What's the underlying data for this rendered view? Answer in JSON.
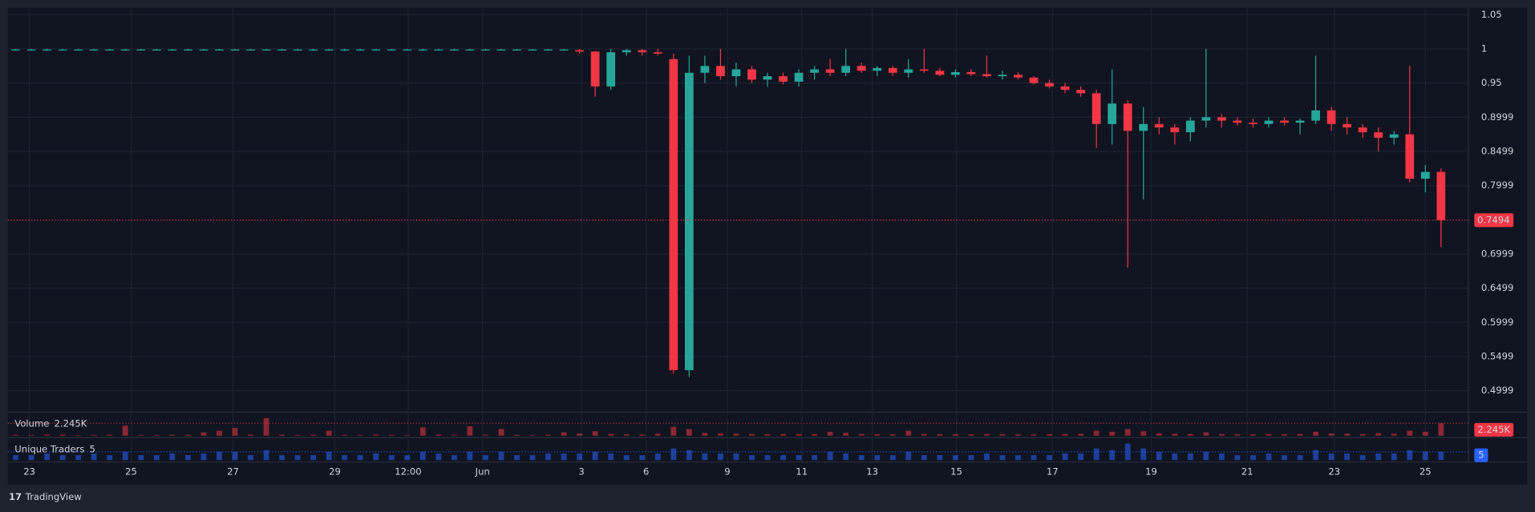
{
  "chart_data": {
    "type": "candlestick",
    "up_color": "#26a69a",
    "down_color": "#f23645",
    "ylim": [
      0.47,
      1.06
    ],
    "yticks": [
      1.05,
      1,
      0.95,
      0.8999,
      0.8499,
      0.7999,
      0.6999,
      0.6499,
      0.5999,
      0.5499,
      0.4999
    ],
    "xlim": [
      0,
      93.25
    ],
    "xticks": [
      {
        "value": 1.375,
        "label": "23"
      },
      {
        "value": 7.875,
        "label": "25"
      },
      {
        "value": 14.375,
        "label": "27"
      },
      {
        "value": 20.875,
        "label": "29"
      },
      {
        "value": 25.56,
        "label": "12:00"
      },
      {
        "value": 30.31,
        "label": "Jun"
      },
      {
        "value": 36.625,
        "label": "3"
      },
      {
        "value": 40.75,
        "label": "6"
      },
      {
        "value": 45.94,
        "label": "9"
      },
      {
        "value": 50.69,
        "label": "11"
      },
      {
        "value": 55.19,
        "label": "13"
      },
      {
        "value": 60.56,
        "label": "15"
      },
      {
        "value": 66.69,
        "label": "17"
      },
      {
        "value": 73,
        "label": "19"
      },
      {
        "value": 79.125,
        "label": "21"
      },
      {
        "value": 84.69,
        "label": "23"
      },
      {
        "value": 90.5,
        "label": "25"
      }
    ],
    "grid": true,
    "last_price": 0.7494,
    "ohlc": [
      [
        0.999,
        1.0,
        0.998,
        0.999
      ],
      [
        0.999,
        1.0,
        0.998,
        0.999
      ],
      [
        0.999,
        1.0,
        0.998,
        0.999
      ],
      [
        0.999,
        1.0,
        0.998,
        0.999
      ],
      [
        0.999,
        1.0,
        0.998,
        0.999
      ],
      [
        0.999,
        1.0,
        0.998,
        0.999
      ],
      [
        0.999,
        1.0,
        0.998,
        0.999
      ],
      [
        0.999,
        1.0,
        0.998,
        0.999
      ],
      [
        0.999,
        1.0,
        0.998,
        0.999
      ],
      [
        0.999,
        1.0,
        0.998,
        0.999
      ],
      [
        0.999,
        1.0,
        0.998,
        0.999
      ],
      [
        0.999,
        1.0,
        0.998,
        0.999
      ],
      [
        0.999,
        1.0,
        0.998,
        0.999
      ],
      [
        0.999,
        1.0,
        0.998,
        0.999
      ],
      [
        0.999,
        1.0,
        0.998,
        0.999
      ],
      [
        0.999,
        1.0,
        0.998,
        0.999
      ],
      [
        0.999,
        1.0,
        0.998,
        0.999
      ],
      [
        0.999,
        1.0,
        0.998,
        0.999
      ],
      [
        0.999,
        1.0,
        0.998,
        0.999
      ],
      [
        0.999,
        1.0,
        0.998,
        0.999
      ],
      [
        0.999,
        1.0,
        0.998,
        0.999
      ],
      [
        0.999,
        1.0,
        0.997,
        0.999
      ],
      [
        0.999,
        1.0,
        0.998,
        0.999
      ],
      [
        0.999,
        1.0,
        0.998,
        0.999
      ],
      [
        0.999,
        1.0,
        0.998,
        0.999
      ],
      [
        0.999,
        1.0,
        0.998,
        0.999
      ],
      [
        0.999,
        1.0,
        0.998,
        0.999
      ],
      [
        0.999,
        1.0,
        0.998,
        0.999
      ],
      [
        0.999,
        1.0,
        0.998,
        0.999
      ],
      [
        0.999,
        1.0,
        0.998,
        0.999
      ],
      [
        0.999,
        1.0,
        0.998,
        0.999
      ],
      [
        0.999,
        1.0,
        0.998,
        0.999
      ],
      [
        0.999,
        1.0,
        0.998,
        0.999
      ],
      [
        0.999,
        1.0,
        0.998,
        0.999
      ],
      [
        0.999,
        1.0,
        0.998,
        0.999
      ],
      [
        0.999,
        1.0,
        0.998,
        0.999
      ],
      [
        0.998,
        1.0,
        0.993,
        0.996
      ],
      [
        0.996,
        0.997,
        0.93,
        0.945
      ],
      [
        0.945,
        1.0,
        0.94,
        0.995
      ],
      [
        0.995,
        1.0,
        0.99,
        0.998
      ],
      [
        0.998,
        1.0,
        0.99,
        0.995
      ],
      [
        0.995,
        1.0,
        0.99,
        0.993
      ],
      [
        0.985,
        0.993,
        0.525,
        0.53
      ],
      [
        0.53,
        0.99,
        0.52,
        0.965
      ],
      [
        0.965,
        0.99,
        0.95,
        0.975
      ],
      [
        0.975,
        1.0,
        0.955,
        0.96
      ],
      [
        0.96,
        0.98,
        0.945,
        0.97
      ],
      [
        0.97,
        0.975,
        0.95,
        0.955
      ],
      [
        0.955,
        0.965,
        0.945,
        0.96
      ],
      [
        0.96,
        0.965,
        0.948,
        0.952
      ],
      [
        0.952,
        0.97,
        0.945,
        0.965
      ],
      [
        0.965,
        0.975,
        0.955,
        0.97
      ],
      [
        0.97,
        0.985,
        0.96,
        0.965
      ],
      [
        0.965,
        1.0,
        0.96,
        0.975
      ],
      [
        0.975,
        0.98,
        0.965,
        0.968
      ],
      [
        0.968,
        0.975,
        0.96,
        0.972
      ],
      [
        0.972,
        0.975,
        0.96,
        0.965
      ],
      [
        0.965,
        0.985,
        0.958,
        0.97
      ],
      [
        0.97,
        1.0,
        0.965,
        0.968
      ],
      [
        0.968,
        0.972,
        0.96,
        0.962
      ],
      [
        0.962,
        0.97,
        0.958,
        0.966
      ],
      [
        0.966,
        0.97,
        0.96,
        0.963
      ],
      [
        0.963,
        0.99,
        0.958,
        0.96
      ],
      [
        0.96,
        0.968,
        0.955,
        0.962
      ],
      [
        0.962,
        0.966,
        0.955,
        0.958
      ],
      [
        0.958,
        0.96,
        0.948,
        0.95
      ],
      [
        0.95,
        0.955,
        0.942,
        0.945
      ],
      [
        0.945,
        0.95,
        0.935,
        0.94
      ],
      [
        0.94,
        0.945,
        0.93,
        0.935
      ],
      [
        0.935,
        0.94,
        0.855,
        0.89
      ],
      [
        0.89,
        0.97,
        0.86,
        0.92
      ],
      [
        0.92,
        0.925,
        0.68,
        0.88
      ],
      [
        0.88,
        0.915,
        0.78,
        0.89
      ],
      [
        0.89,
        0.9,
        0.875,
        0.885
      ],
      [
        0.885,
        0.89,
        0.86,
        0.878
      ],
      [
        0.878,
        0.9,
        0.865,
        0.895
      ],
      [
        0.895,
        1.0,
        0.885,
        0.9
      ],
      [
        0.9,
        0.905,
        0.885,
        0.895
      ],
      [
        0.895,
        0.9,
        0.888,
        0.892
      ],
      [
        0.892,
        0.898,
        0.885,
        0.89
      ],
      [
        0.89,
        0.9,
        0.885,
        0.895
      ],
      [
        0.895,
        0.9,
        0.888,
        0.892
      ],
      [
        0.892,
        0.898,
        0.875,
        0.895
      ],
      [
        0.895,
        0.99,
        0.89,
        0.91
      ],
      [
        0.91,
        0.915,
        0.88,
        0.89
      ],
      [
        0.89,
        0.9,
        0.875,
        0.885
      ],
      [
        0.885,
        0.89,
        0.87,
        0.878
      ],
      [
        0.878,
        0.885,
        0.85,
        0.87
      ],
      [
        0.87,
        0.88,
        0.86,
        0.875
      ],
      [
        0.875,
        0.975,
        0.805,
        0.81
      ],
      [
        0.81,
        0.83,
        0.79,
        0.82
      ],
      [
        0.82,
        0.825,
        0.71,
        0.7494
      ]
    ],
    "panes": [
      {
        "name": "Volume",
        "color": "#f23645",
        "last_value": 2245,
        "last_label": "2.245K",
        "values": [
          150,
          120,
          200,
          180,
          90,
          140,
          160,
          1800,
          130,
          110,
          170,
          150,
          600,
          900,
          1400,
          200,
          3200,
          180,
          120,
          160,
          900,
          140,
          130,
          200,
          150,
          110,
          1500,
          190,
          140,
          1700,
          160,
          1200,
          150,
          130,
          170,
          600,
          400,
          800,
          300,
          250,
          200,
          350,
          1600,
          1200,
          500,
          400,
          350,
          300,
          250,
          300,
          280,
          260,
          700,
          500,
          300,
          280,
          260,
          900,
          300,
          250,
          240,
          260,
          300,
          250,
          230,
          220,
          260,
          300,
          350,
          900,
          700,
          1200,
          800,
          400,
          350,
          300,
          600,
          300,
          280,
          260,
          300,
          280,
          320,
          700,
          400,
          350,
          300,
          450,
          350,
          900,
          700,
          2245
        ]
      },
      {
        "name": "Unique Traders",
        "color": "#2962ff",
        "last_value": 5,
        "values": [
          3,
          3,
          4,
          3,
          3,
          4,
          3,
          5,
          3,
          3,
          4,
          3,
          4,
          5,
          5,
          3,
          6,
          3,
          3,
          3,
          5,
          3,
          3,
          4,
          3,
          3,
          5,
          4,
          3,
          5,
          3,
          5,
          3,
          3,
          4,
          4,
          4,
          5,
          4,
          3,
          3,
          4,
          7,
          6,
          4,
          4,
          4,
          3,
          3,
          3,
          3,
          3,
          5,
          4,
          3,
          3,
          3,
          5,
          3,
          3,
          3,
          3,
          4,
          3,
          3,
          3,
          3,
          4,
          4,
          7,
          6,
          10,
          7,
          5,
          4,
          4,
          5,
          4,
          3,
          3,
          4,
          3,
          3,
          6,
          4,
          4,
          3,
          4,
          4,
          6,
          5,
          5
        ]
      }
    ]
  },
  "footer": "TradingView"
}
